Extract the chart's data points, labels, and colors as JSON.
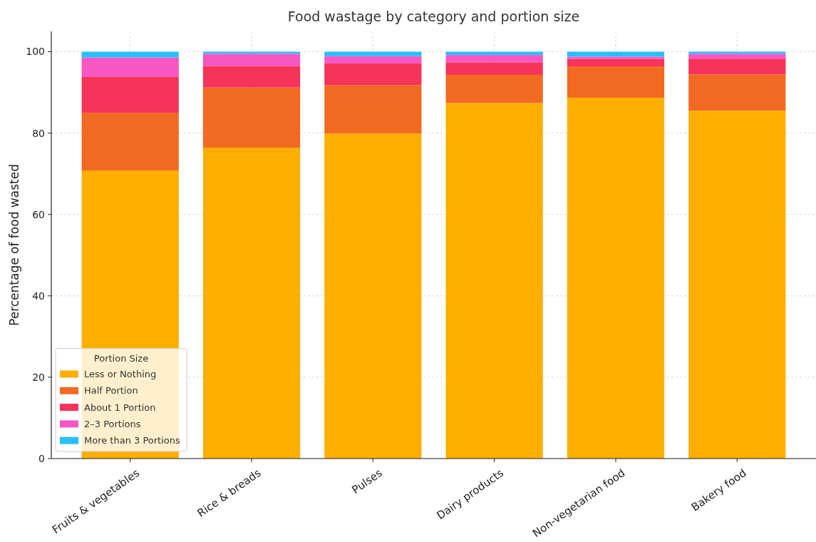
{
  "chart_data": {
    "type": "bar",
    "title": "Food wastage by category and portion size",
    "ylabel": "Percentage of food wasted",
    "legend_title": "Portion Size",
    "categories": [
      "Fruits & vegetables",
      "Rice & breads",
      "Pulses",
      "Dairy products",
      "Non-vegetarian food",
      "Bakery food"
    ],
    "stacked": true,
    "ylim": [
      0,
      105
    ],
    "yticks": [
      0,
      20,
      40,
      60,
      80,
      100
    ],
    "grid": true,
    "legend": "bottom left",
    "series": [
      {
        "name": "Less or Nothing",
        "color": "#ffae00",
        "values": [
          70.8,
          76.4,
          79.9,
          87.4,
          88.7,
          85.5
        ]
      },
      {
        "name": "Half Portion",
        "color": "#f26922",
        "values": [
          14.2,
          14.8,
          11.9,
          6.9,
          7.7,
          8.9
        ]
      },
      {
        "name": "About 1 Portion",
        "color": "#f63359",
        "values": [
          8.8,
          5.3,
          5.3,
          3.1,
          1.8,
          3.9
        ]
      },
      {
        "name": "2–3 Portions",
        "color": "#f857c3",
        "values": [
          4.8,
          3.0,
          1.8,
          1.8,
          0.6,
          1.2
        ]
      },
      {
        "name": "More than 3 Portions",
        "color": "#26c0fc",
        "values": [
          1.4,
          0.5,
          1.1,
          0.8,
          1.2,
          0.5
        ]
      }
    ]
  }
}
